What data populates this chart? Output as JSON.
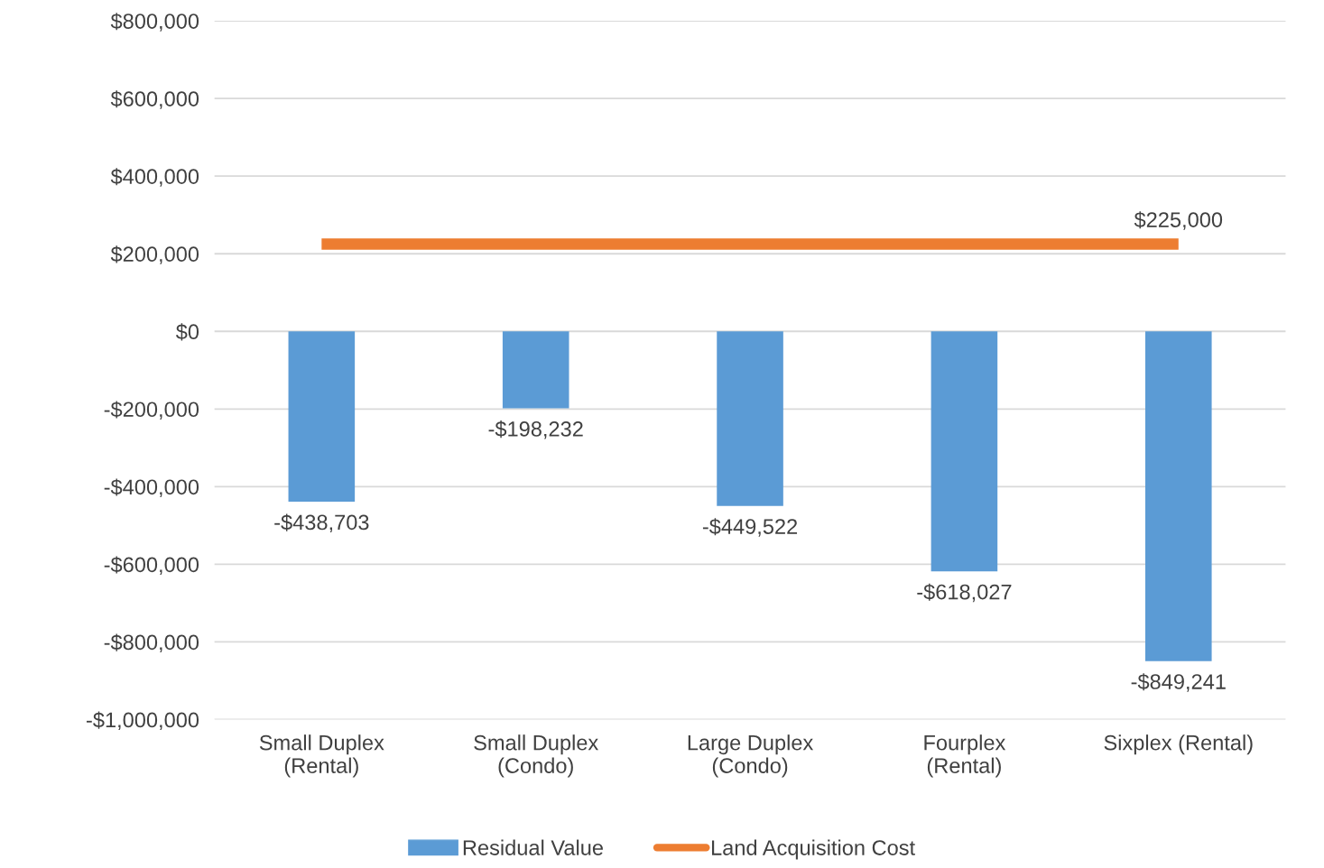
{
  "chart_data": {
    "type": "bar",
    "categories": [
      "Small Duplex (Rental)",
      "Small Duplex (Condo)",
      "Large Duplex (Condo)",
      "Fourplex (Rental)",
      "Sixplex (Rental)"
    ],
    "series": [
      {
        "name": "Residual Value",
        "color": "#5b9bd5",
        "values": [
          -438703,
          -198232,
          -449522,
          -618027,
          -849241
        ],
        "value_labels": [
          "-$438,703",
          "-$198,232",
          "-$449,522",
          "-$618,027",
          "-$849,241"
        ]
      },
      {
        "name": "Land Acquisition Cost",
        "type": "line",
        "color": "#ed7d31",
        "values": [
          225000,
          225000,
          225000,
          225000,
          225000
        ],
        "value_labels": [
          null,
          null,
          null,
          null,
          "$225,000"
        ]
      }
    ],
    "ylim": [
      -1000000,
      800000
    ],
    "yticks": [
      {
        "value": 800000,
        "label": "$800,000"
      },
      {
        "value": 600000,
        "label": "$600,000"
      },
      {
        "value": 400000,
        "label": "$400,000"
      },
      {
        "value": 200000,
        "label": "$200,000"
      },
      {
        "value": 0,
        "label": "$0"
      },
      {
        "value": -200000,
        "label": "-$200,000"
      },
      {
        "value": -400000,
        "label": "-$400,000"
      },
      {
        "value": -600000,
        "label": "-$600,000"
      },
      {
        "value": -800000,
        "label": "-$800,000"
      },
      {
        "value": -1000000,
        "label": "-$1,000,000"
      }
    ],
    "grid": "y",
    "legend": "bottom",
    "marker": "none"
  }
}
